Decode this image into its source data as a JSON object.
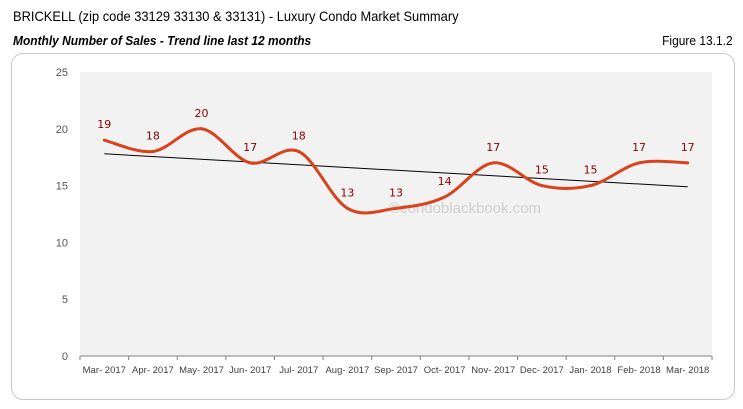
{
  "header": {
    "title": "BRICKELL (zip code 33129 33130 & 33131) - Luxury Condo Market Summary",
    "subtitle": "Monthly Number of Sales - Trend line last 12 months",
    "figure": "Figure 13.1.2"
  },
  "watermark": "©condoblackbook.com",
  "chart_data": {
    "type": "line",
    "categories": [
      "Mar- 2017",
      "Apr- 2017",
      "May- 2017",
      "Jun- 2017",
      "Jul- 2017",
      "Aug- 2017",
      "Sep- 2017",
      "Oct- 2017",
      "Nov- 2017",
      "Dec- 2017",
      "Jan- 2018",
      "Feb- 2018",
      "Mar- 2018"
    ],
    "values": [
      19,
      18,
      20,
      17,
      18,
      13,
      13,
      14,
      17,
      15,
      15,
      17,
      17
    ],
    "trendline": {
      "start": 17.8,
      "end": 14.9,
      "color": "#000000"
    },
    "yticks": [
      0,
      5,
      10,
      15,
      20,
      25
    ],
    "ylim": [
      0,
      25
    ],
    "line_color": "#d9421a",
    "label_color": "#8b0000",
    "plot_background": "#f2f2f2",
    "grid": false,
    "smooth": true
  }
}
